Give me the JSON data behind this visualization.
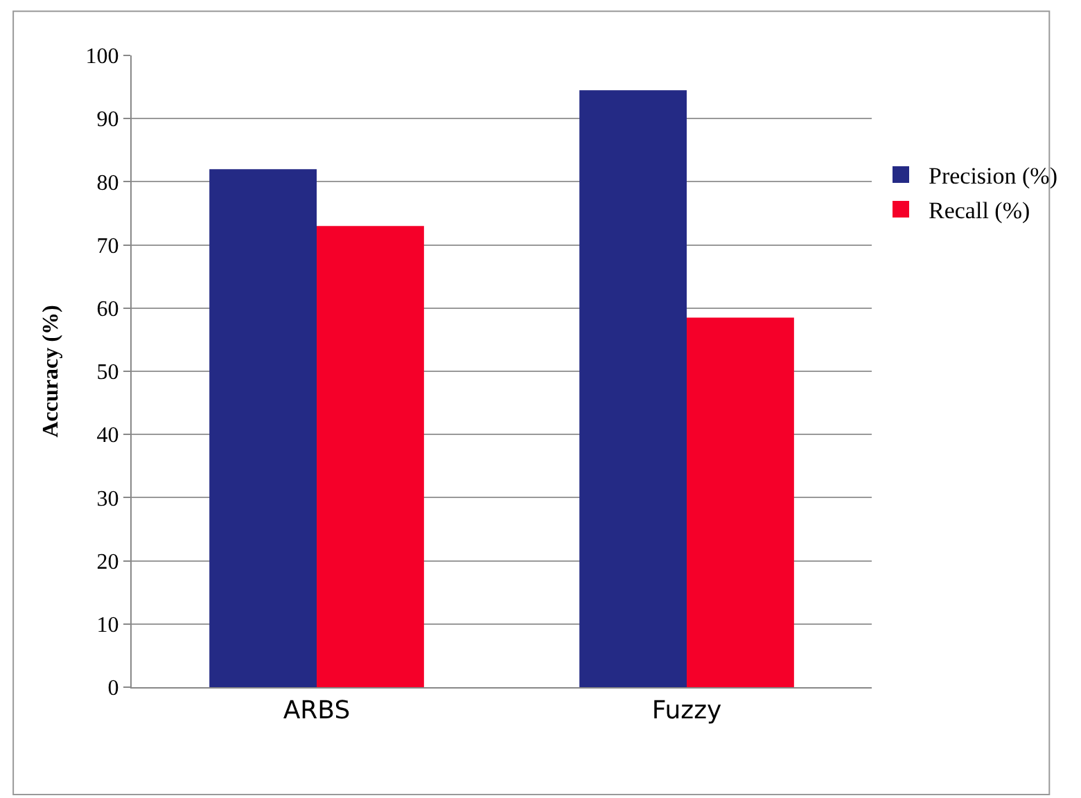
{
  "chart_data": {
    "type": "bar",
    "ylabel": "Accuracy (%)",
    "categories": [
      "ARBS",
      "Fuzzy"
    ],
    "series": [
      {
        "name": "Precision (%)",
        "color": "#242a85",
        "values": [
          82,
          94.5
        ]
      },
      {
        "name": "Recall (%)",
        "color": "#f50029",
        "values": [
          73,
          58.5
        ]
      }
    ],
    "ylim": [
      0,
      100
    ],
    "yticks": [
      0,
      10,
      20,
      30,
      40,
      50,
      60,
      70,
      80,
      90,
      100
    ],
    "grid": "y",
    "legend": "top right"
  }
}
